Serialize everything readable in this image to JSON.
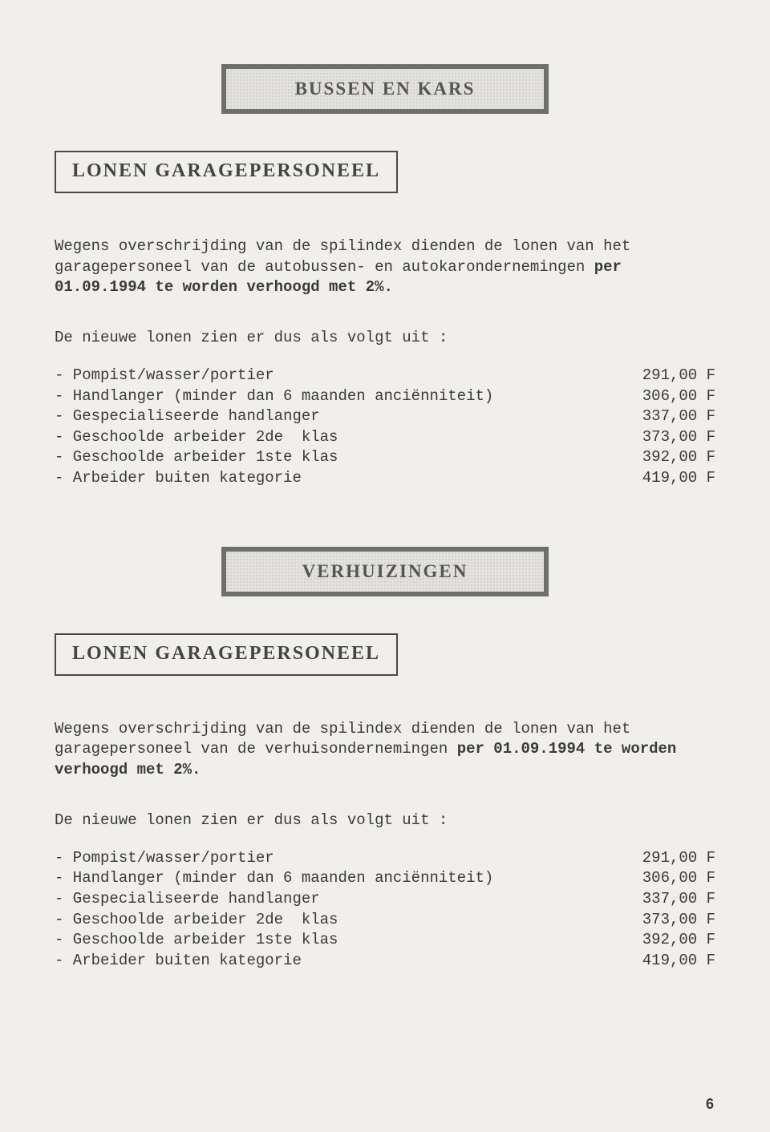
{
  "section1": {
    "banner": "BUSSEN  EN  KARS",
    "subheading": "LONEN  GARAGEPERSONEEL",
    "paragraph_pre": "Wegens overschrijding van de spilindex dienden de lonen van het garagepersoneel van de autobussen- en autokarondernemingen ",
    "paragraph_bold": "per 01.09.1994 te worden verhoogd met 2%.",
    "list_intro": "De nieuwe lonen zien er dus als volgt uit :",
    "rows": [
      {
        "label": "- Pompist/wasser/portier",
        "value": "291,00 F"
      },
      {
        "label": "- Handlanger (minder dan 6 maanden anciënniteit)",
        "value": "306,00 F"
      },
      {
        "label": "- Gespecialiseerde handlanger",
        "value": "337,00 F"
      },
      {
        "label": "- Geschoolde arbeider 2de  klas",
        "value": "373,00 F"
      },
      {
        "label": "- Geschoolde arbeider 1ste klas",
        "value": "392,00 F"
      },
      {
        "label": "- Arbeider buiten kategorie",
        "value": "419,00 F"
      }
    ]
  },
  "section2": {
    "banner": "VERHUIZINGEN",
    "subheading": "LONEN  GARAGEPERSONEEL",
    "paragraph_pre": "Wegens overschrijding van de spilindex dienden de lonen van het garagepersoneel  van  de  verhuisondernemingen  ",
    "paragraph_bold": "per  01.09.1994  te worden verhoogd met 2%.",
    "list_intro": "De nieuwe lonen zien er dus als volgt uit :",
    "rows": [
      {
        "label": "- Pompist/wasser/portier",
        "value": "291,00 F"
      },
      {
        "label": "- Handlanger (minder dan 6 maanden anciënniteit)",
        "value": "306,00 F"
      },
      {
        "label": "- Gespecialiseerde handlanger",
        "value": "337,00 F"
      },
      {
        "label": "- Geschoolde arbeider 2de  klas",
        "value": "373,00 F"
      },
      {
        "label": "- Geschoolde arbeider 1ste klas",
        "value": "392,00 F"
      },
      {
        "label": "- Arbeider buiten kategorie",
        "value": "419,00 F"
      }
    ]
  },
  "page_number": "6"
}
